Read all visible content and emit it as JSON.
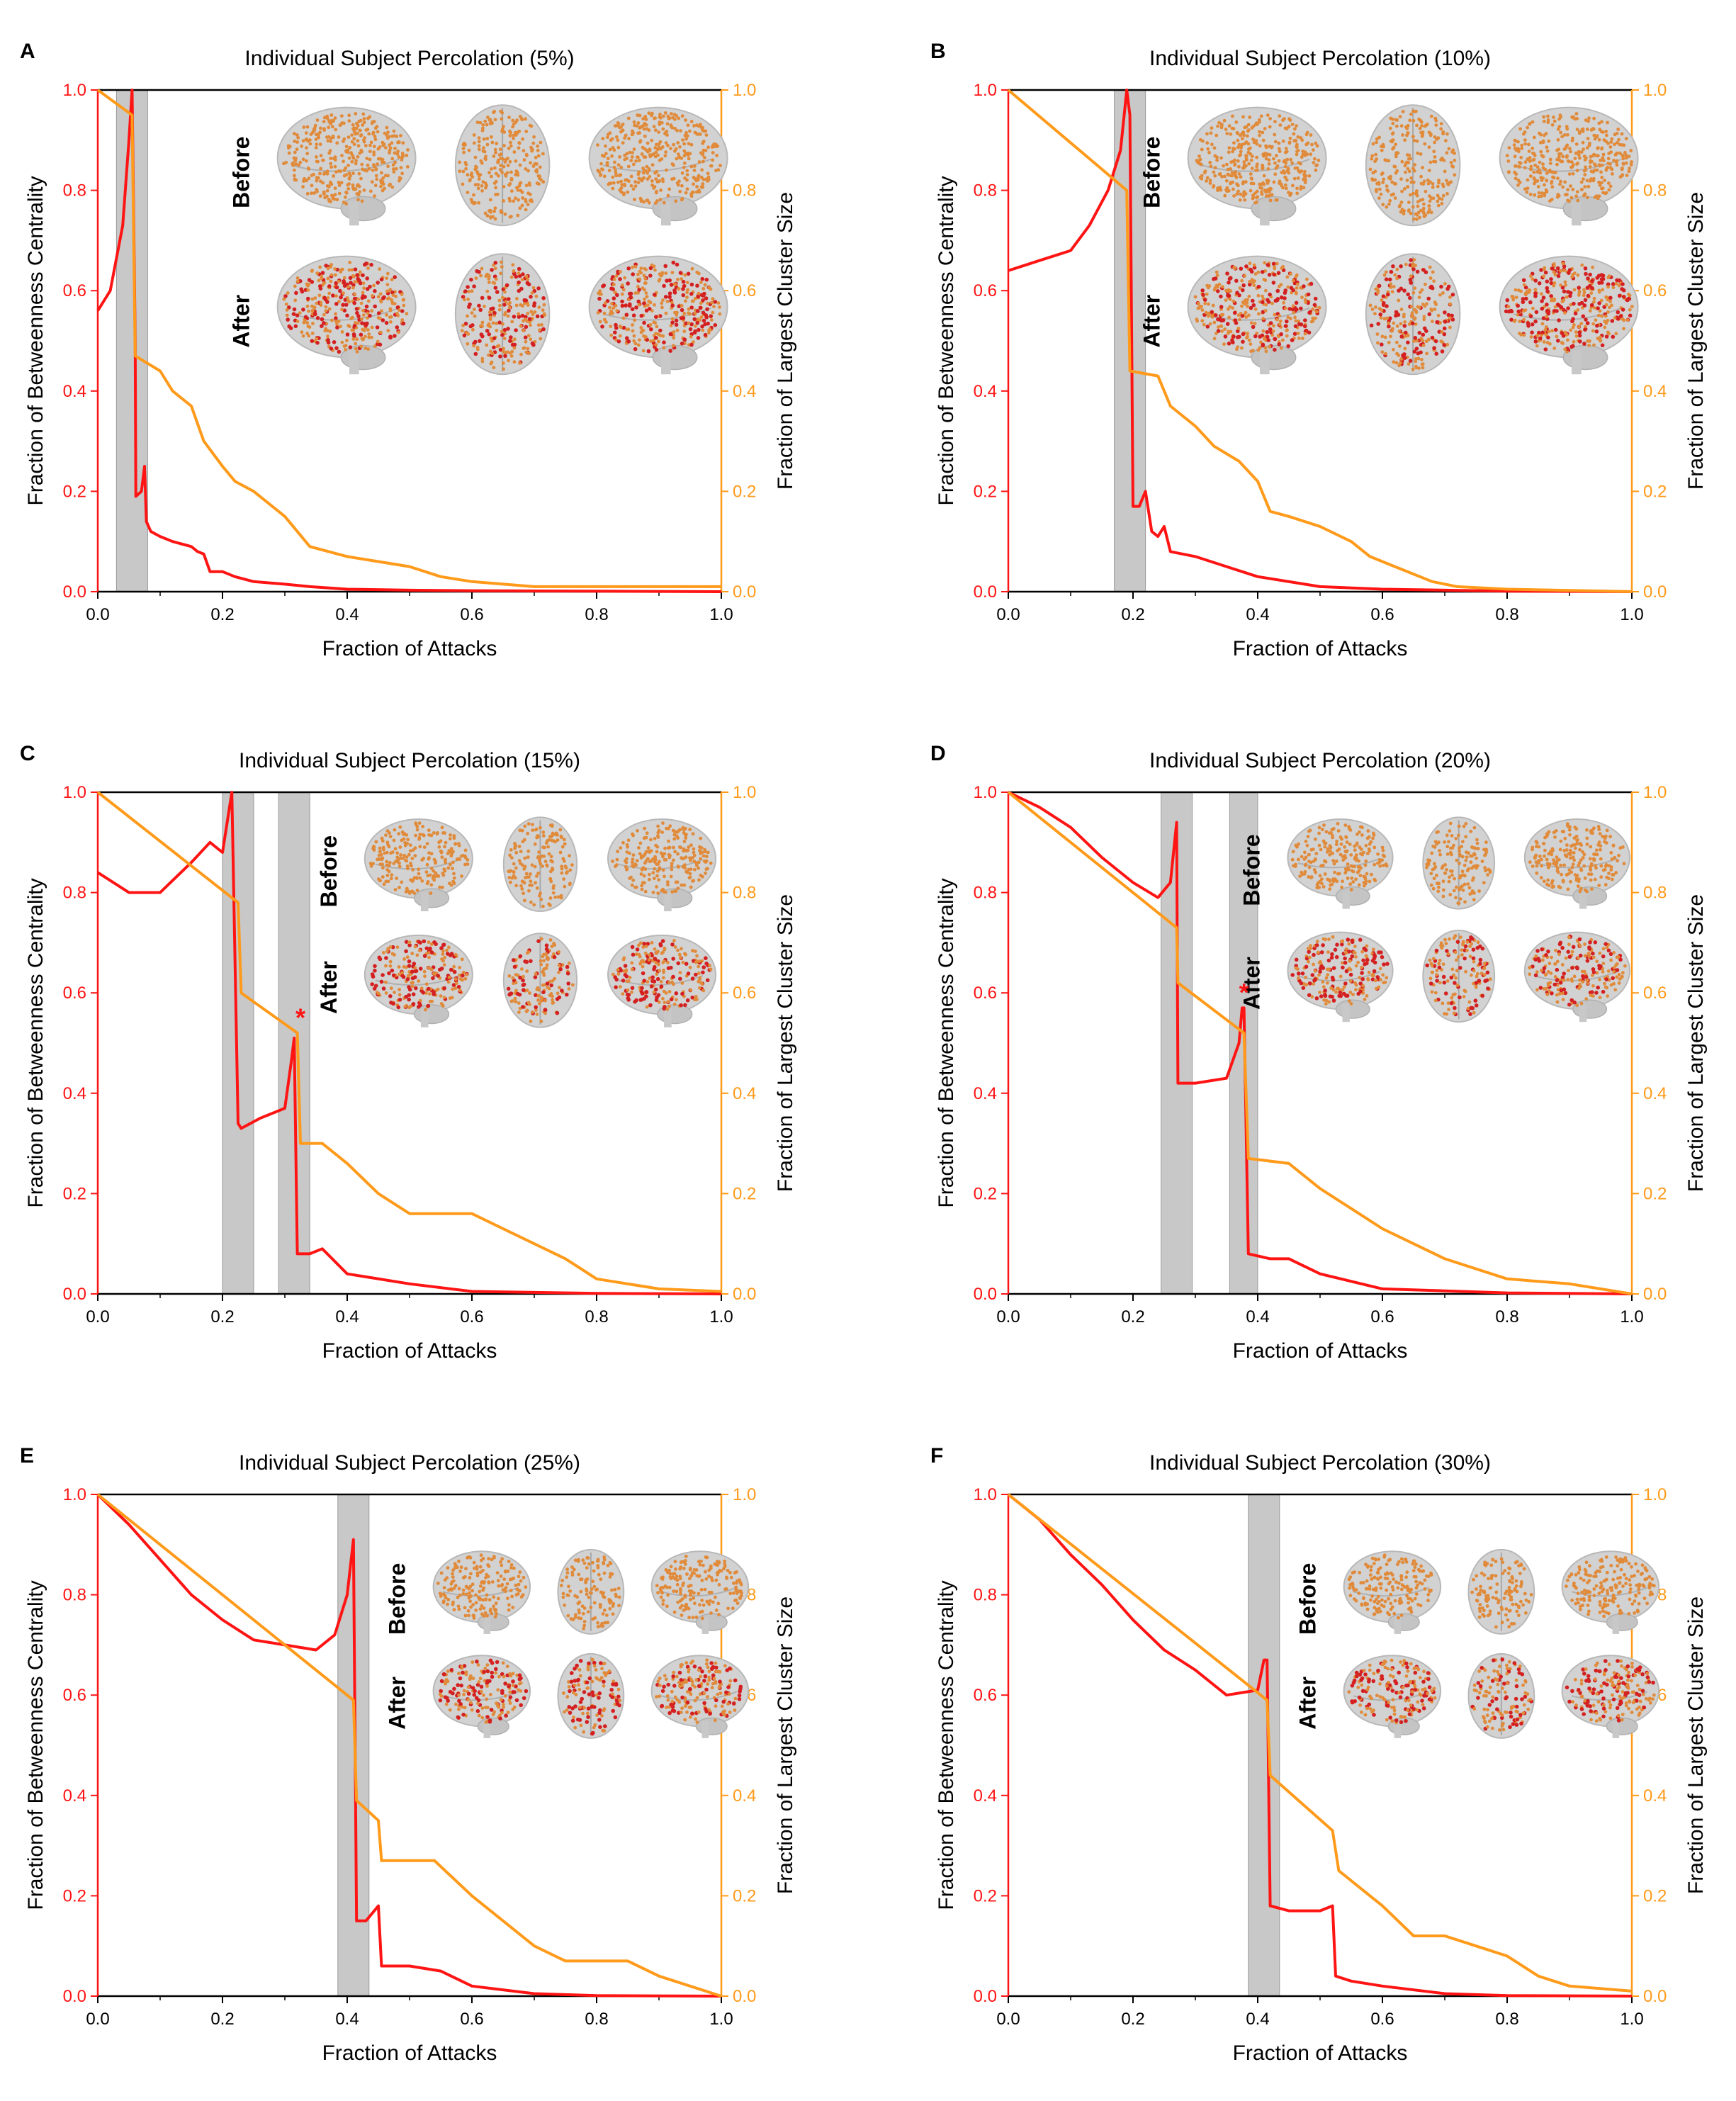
{
  "figure": {
    "panel_labels": [
      "A",
      "B",
      "C",
      "D",
      "E",
      "F"
    ],
    "brain_labels": {
      "before": "Before",
      "after": "After"
    },
    "colors": {
      "bc": "#ff1414",
      "lcs": "#ff9a1a",
      "shade": "#c8c8c8",
      "brain": "#d2d2d2",
      "node_orange": "#e08a3a",
      "node_red": "#d42020"
    }
  },
  "chart_data": [
    {
      "type": "line",
      "title": "Individual Subject Percolation (5%)",
      "xlabel": "Fraction of Attacks",
      "ylabel_left": "Fraction of Betweenness Centrality",
      "ylabel_right": "Fraction of Largest Cluster Size",
      "xlim": [
        0,
        1
      ],
      "ylim_left": [
        0,
        1
      ],
      "ylim_right": [
        0,
        1
      ],
      "xticks": [
        "0.0",
        "0.2",
        "0.4",
        "0.6",
        "0.8",
        "1.0"
      ],
      "yticks": [
        "0.0",
        "0.2",
        "0.4",
        "0.6",
        "0.8",
        "1.0"
      ],
      "shaded_regions": [
        [
          0.03,
          0.08
        ]
      ],
      "star_marker": null,
      "series": [
        {
          "name": "Fraction of Betweenness Centrality",
          "axis": "left",
          "x": [
            0,
            0.02,
            0.04,
            0.05,
            0.055,
            0.06,
            0.061,
            0.07,
            0.075,
            0.078,
            0.085,
            0.1,
            0.12,
            0.15,
            0.16,
            0.17,
            0.18,
            0.2,
            0.22,
            0.25,
            0.3,
            0.34,
            0.4,
            0.5,
            0.6,
            0.8,
            1.0
          ],
          "y": [
            0.56,
            0.6,
            0.73,
            0.9,
            1.0,
            0.5,
            0.19,
            0.2,
            0.25,
            0.14,
            0.12,
            0.11,
            0.1,
            0.09,
            0.08,
            0.075,
            0.04,
            0.04,
            0.03,
            0.02,
            0.015,
            0.01,
            0.005,
            0.003,
            0.002,
            0.001,
            0.0
          ]
        },
        {
          "name": "Fraction of Largest Cluster Size",
          "axis": "right",
          "x": [
            0,
            0.055,
            0.06,
            0.1,
            0.12,
            0.15,
            0.17,
            0.2,
            0.22,
            0.25,
            0.3,
            0.34,
            0.4,
            0.5,
            0.55,
            0.6,
            0.7,
            0.8,
            1.0
          ],
          "y": [
            1.0,
            0.95,
            0.47,
            0.44,
            0.4,
            0.37,
            0.3,
            0.25,
            0.22,
            0.2,
            0.15,
            0.09,
            0.07,
            0.05,
            0.03,
            0.02,
            0.01,
            0.01,
            0.01
          ]
        }
      ]
    },
    {
      "type": "line",
      "title": "Individual Subject Percolation (10%)",
      "xlabel": "Fraction of Attacks",
      "ylabel_left": "Fraction of Betweenness Centrality",
      "ylabel_right": "Fraction of Largest Cluster Size",
      "xlim": [
        0,
        1
      ],
      "ylim_left": [
        0,
        1
      ],
      "ylim_right": [
        0,
        1
      ],
      "xticks": [
        "0.0",
        "0.2",
        "0.4",
        "0.6",
        "0.8",
        "1.0"
      ],
      "yticks": [
        "0.0",
        "0.2",
        "0.4",
        "0.6",
        "0.8",
        "1.0"
      ],
      "shaded_regions": [
        [
          0.17,
          0.22
        ]
      ],
      "star_marker": null,
      "series": [
        {
          "name": "Fraction of Betweenness Centrality",
          "axis": "left",
          "x": [
            0,
            0.05,
            0.1,
            0.13,
            0.16,
            0.18,
            0.19,
            0.195,
            0.2,
            0.21,
            0.22,
            0.23,
            0.24,
            0.25,
            0.26,
            0.3,
            0.35,
            0.4,
            0.5,
            0.6,
            0.8,
            1.0
          ],
          "y": [
            0.64,
            0.66,
            0.68,
            0.73,
            0.8,
            0.88,
            1.0,
            0.95,
            0.17,
            0.17,
            0.2,
            0.12,
            0.11,
            0.13,
            0.08,
            0.07,
            0.05,
            0.03,
            0.01,
            0.005,
            0.001,
            0.0
          ]
        },
        {
          "name": "Fraction of Largest Cluster Size",
          "axis": "right",
          "x": [
            0,
            0.19,
            0.195,
            0.24,
            0.26,
            0.3,
            0.33,
            0.37,
            0.4,
            0.42,
            0.45,
            0.5,
            0.55,
            0.58,
            0.62,
            0.68,
            0.72,
            0.8,
            1.0
          ],
          "y": [
            1.0,
            0.8,
            0.44,
            0.43,
            0.37,
            0.33,
            0.29,
            0.26,
            0.22,
            0.16,
            0.15,
            0.13,
            0.1,
            0.07,
            0.05,
            0.02,
            0.01,
            0.005,
            0.0
          ]
        }
      ]
    },
    {
      "type": "line",
      "title": "Individual Subject Percolation (15%)",
      "xlabel": "Fraction of Attacks",
      "ylabel_left": "Fraction of Betweenness Centrality",
      "ylabel_right": "Fraction of Largest Cluster Size",
      "xlim": [
        0,
        1
      ],
      "ylim_left": [
        0,
        1
      ],
      "ylim_right": [
        0,
        1
      ],
      "xticks": [
        "0.0",
        "0.2",
        "0.4",
        "0.6",
        "0.8",
        "1.0"
      ],
      "yticks": [
        "0.0",
        "0.2",
        "0.4",
        "0.6",
        "0.8",
        "1.0"
      ],
      "shaded_regions": [
        [
          0.2,
          0.25
        ],
        [
          0.29,
          0.34
        ]
      ],
      "star_marker": {
        "x": 0.325,
        "y": 0.55,
        "label": "*"
      },
      "series": [
        {
          "name": "Fraction of Betweenness Centrality",
          "axis": "left",
          "x": [
            0,
            0.05,
            0.1,
            0.15,
            0.18,
            0.2,
            0.215,
            0.225,
            0.23,
            0.26,
            0.3,
            0.31,
            0.315,
            0.32,
            0.34,
            0.36,
            0.4,
            0.5,
            0.6,
            0.8,
            1.0
          ],
          "y": [
            0.84,
            0.8,
            0.8,
            0.86,
            0.9,
            0.88,
            1.0,
            0.34,
            0.33,
            0.35,
            0.37,
            0.46,
            0.51,
            0.08,
            0.08,
            0.09,
            0.04,
            0.02,
            0.005,
            0.001,
            0.0
          ]
        },
        {
          "name": "Fraction of Largest Cluster Size",
          "axis": "right",
          "x": [
            0,
            0.225,
            0.23,
            0.32,
            0.325,
            0.36,
            0.4,
            0.45,
            0.5,
            0.6,
            0.65,
            0.7,
            0.75,
            0.8,
            0.9,
            1.0
          ],
          "y": [
            1.0,
            0.78,
            0.6,
            0.52,
            0.3,
            0.3,
            0.26,
            0.2,
            0.16,
            0.16,
            0.13,
            0.1,
            0.07,
            0.03,
            0.01,
            0.005
          ]
        }
      ]
    },
    {
      "type": "line",
      "title": "Individual Subject Percolation (20%)",
      "xlabel": "Fraction of Attacks",
      "ylabel_left": "Fraction of Betweenness Centrality",
      "ylabel_right": "Fraction of Largest Cluster Size",
      "xlim": [
        0,
        1
      ],
      "ylim_left": [
        0,
        1
      ],
      "ylim_right": [
        0,
        1
      ],
      "xticks": [
        "0.0",
        "0.2",
        "0.4",
        "0.6",
        "0.8",
        "1.0"
      ],
      "yticks": [
        "0.0",
        "0.2",
        "0.4",
        "0.6",
        "0.8",
        "1.0"
      ],
      "shaded_regions": [
        [
          0.245,
          0.295
        ],
        [
          0.355,
          0.4
        ]
      ],
      "star_marker": {
        "x": 0.378,
        "y": 0.6,
        "label": "*"
      },
      "series": [
        {
          "name": "Fraction of Betweenness Centrality",
          "axis": "left",
          "x": [
            0,
            0.05,
            0.1,
            0.15,
            0.2,
            0.24,
            0.26,
            0.27,
            0.272,
            0.3,
            0.35,
            0.37,
            0.375,
            0.378,
            0.385,
            0.42,
            0.45,
            0.5,
            0.6,
            0.8,
            1.0
          ],
          "y": [
            1.0,
            0.97,
            0.93,
            0.87,
            0.82,
            0.79,
            0.82,
            0.94,
            0.42,
            0.42,
            0.43,
            0.5,
            0.57,
            0.57,
            0.08,
            0.07,
            0.07,
            0.04,
            0.01,
            0.002,
            0.0
          ]
        },
        {
          "name": "Fraction of Largest Cluster Size",
          "axis": "right",
          "x": [
            0,
            0.27,
            0.272,
            0.378,
            0.385,
            0.45,
            0.5,
            0.55,
            0.6,
            0.65,
            0.7,
            0.8,
            0.9,
            1.0
          ],
          "y": [
            1.0,
            0.73,
            0.62,
            0.52,
            0.27,
            0.26,
            0.21,
            0.17,
            0.13,
            0.1,
            0.07,
            0.03,
            0.02,
            0.0
          ]
        }
      ]
    },
    {
      "type": "line",
      "title": "Individual Subject Percolation (25%)",
      "xlabel": "Fraction of Attacks",
      "ylabel_left": "Fraction of Betweenness Centrality",
      "ylabel_right": "Fraction of Largest Cluster Size",
      "xlim": [
        0,
        1
      ],
      "ylim_left": [
        0,
        1
      ],
      "ylim_right": [
        0,
        1
      ],
      "xticks": [
        "0.0",
        "0.2",
        "0.4",
        "0.6",
        "0.8",
        "1.0"
      ],
      "yticks": [
        "0.0",
        "0.2",
        "0.4",
        "0.6",
        "0.8",
        "1.0"
      ],
      "shaded_regions": [
        [
          0.385,
          0.435
        ]
      ],
      "star_marker": null,
      "series": [
        {
          "name": "Fraction of Betweenness Centrality",
          "axis": "left",
          "x": [
            0,
            0.05,
            0.1,
            0.15,
            0.2,
            0.25,
            0.3,
            0.35,
            0.38,
            0.4,
            0.41,
            0.415,
            0.43,
            0.45,
            0.455,
            0.5,
            0.55,
            0.6,
            0.7,
            0.8,
            1.0
          ],
          "y": [
            1.0,
            0.94,
            0.87,
            0.8,
            0.75,
            0.71,
            0.7,
            0.69,
            0.72,
            0.8,
            0.91,
            0.15,
            0.15,
            0.18,
            0.06,
            0.06,
            0.05,
            0.02,
            0.005,
            0.001,
            0.0
          ]
        },
        {
          "name": "Fraction of Largest Cluster Size",
          "axis": "right",
          "x": [
            0,
            0.41,
            0.415,
            0.45,
            0.455,
            0.54,
            0.6,
            0.65,
            0.7,
            0.75,
            0.85,
            0.9,
            1.0
          ],
          "y": [
            1.0,
            0.59,
            0.39,
            0.35,
            0.27,
            0.27,
            0.2,
            0.15,
            0.1,
            0.07,
            0.07,
            0.04,
            0.0
          ]
        }
      ]
    },
    {
      "type": "line",
      "title": "Individual Subject Percolation (30%)",
      "xlabel": "Fraction of Attacks",
      "ylabel_left": "Fraction of Betweenness Centrality",
      "ylabel_right": "Fraction of Largest Cluster Size",
      "xlim": [
        0,
        1
      ],
      "ylim_left": [
        0,
        1
      ],
      "ylim_right": [
        0,
        1
      ],
      "xticks": [
        "0.0",
        "0.2",
        "0.4",
        "0.6",
        "0.8",
        "1.0"
      ],
      "yticks": [
        "0.0",
        "0.2",
        "0.4",
        "0.6",
        "0.8",
        "1.0"
      ],
      "shaded_regions": [
        [
          0.385,
          0.435
        ]
      ],
      "star_marker": null,
      "series": [
        {
          "name": "Fraction of Betweenness Centrality",
          "axis": "left",
          "x": [
            0,
            0.05,
            0.1,
            0.15,
            0.2,
            0.25,
            0.3,
            0.35,
            0.4,
            0.41,
            0.415,
            0.42,
            0.45,
            0.5,
            0.52,
            0.525,
            0.55,
            0.6,
            0.7,
            0.8,
            1.0
          ],
          "y": [
            1.0,
            0.95,
            0.88,
            0.82,
            0.75,
            0.69,
            0.65,
            0.6,
            0.61,
            0.67,
            0.67,
            0.18,
            0.17,
            0.17,
            0.18,
            0.04,
            0.03,
            0.02,
            0.005,
            0.001,
            0.0
          ]
        },
        {
          "name": "Fraction of Largest Cluster Size",
          "axis": "right",
          "x": [
            0,
            0.415,
            0.42,
            0.52,
            0.53,
            0.6,
            0.65,
            0.7,
            0.75,
            0.8,
            0.85,
            0.9,
            1.0
          ],
          "y": [
            1.0,
            0.59,
            0.44,
            0.33,
            0.25,
            0.18,
            0.12,
            0.12,
            0.1,
            0.08,
            0.04,
            0.02,
            0.01
          ]
        }
      ]
    }
  ]
}
